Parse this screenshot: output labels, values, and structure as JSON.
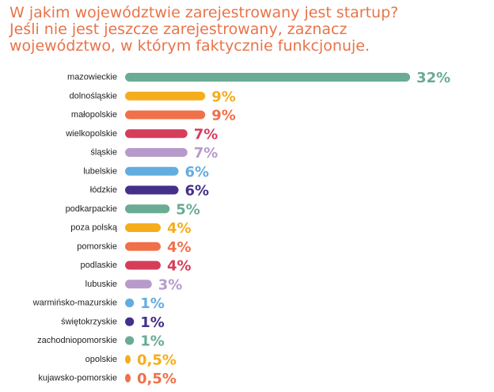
{
  "title_lines": [
    "W jakim województwie zarejestrowany jest startup?",
    "Jeśli nie jest jeszcze zarejestrowany, zaznacz",
    "województwo, w którym faktycznie funkcjonuje."
  ],
  "colors": {
    "title": "#e8744a",
    "teal": "#6aab93",
    "yellow": "#f5ad1c",
    "orange": "#f0704a",
    "crimson": "#d63d5b",
    "lilac": "#b79acc",
    "blue": "#62ade0",
    "indigo": "#44308a"
  },
  "chart_data": {
    "type": "bar",
    "orientation": "horizontal",
    "categories": [
      "mazowieckie",
      "dolnośląskie",
      "małopolskie",
      "wielkopolskie",
      "śląskie",
      "lubelskie",
      "łódzkie",
      "podkarpackie",
      "poza polską",
      "pomorskie",
      "podlaskie",
      "lubuskie",
      "warmińsko-mazurskie",
      "świętokrzyskie",
      "zachodniopomorskie",
      "opolskie",
      "kujawsko-pomorskie"
    ],
    "values": [
      32,
      9,
      9,
      7,
      7,
      6,
      6,
      5,
      4,
      4,
      4,
      3,
      1,
      1,
      1,
      0.5,
      0.5
    ],
    "value_labels": [
      "32%",
      "9%",
      "9%",
      "7%",
      "7%",
      "6%",
      "6%",
      "5%",
      "4%",
      "4%",
      "4%",
      "3%",
      "1%",
      "1%",
      "1%",
      "0,5%",
      "0,5%"
    ],
    "bar_colors": [
      "#6aab93",
      "#f5ad1c",
      "#f0704a",
      "#d63d5b",
      "#b79acc",
      "#62ade0",
      "#44308a",
      "#6aab93",
      "#f5ad1c",
      "#f0704a",
      "#d63d5b",
      "#b79acc",
      "#62ade0",
      "#44308a",
      "#6aab93",
      "#f5ad1c",
      "#f0704a"
    ],
    "label_colors": [
      "#6aab93",
      "#f5ad1c",
      "#f0704a",
      "#d63d5b",
      "#b79acc",
      "#62ade0",
      "#44308a",
      "#6aab93",
      "#f5ad1c",
      "#f0704a",
      "#d63d5b",
      "#b79acc",
      "#62ade0",
      "#44308a",
      "#6aab93",
      "#f5ad1c",
      "#f0704a"
    ],
    "xlim": [
      0,
      32
    ],
    "grid": false,
    "legend": "none"
  }
}
